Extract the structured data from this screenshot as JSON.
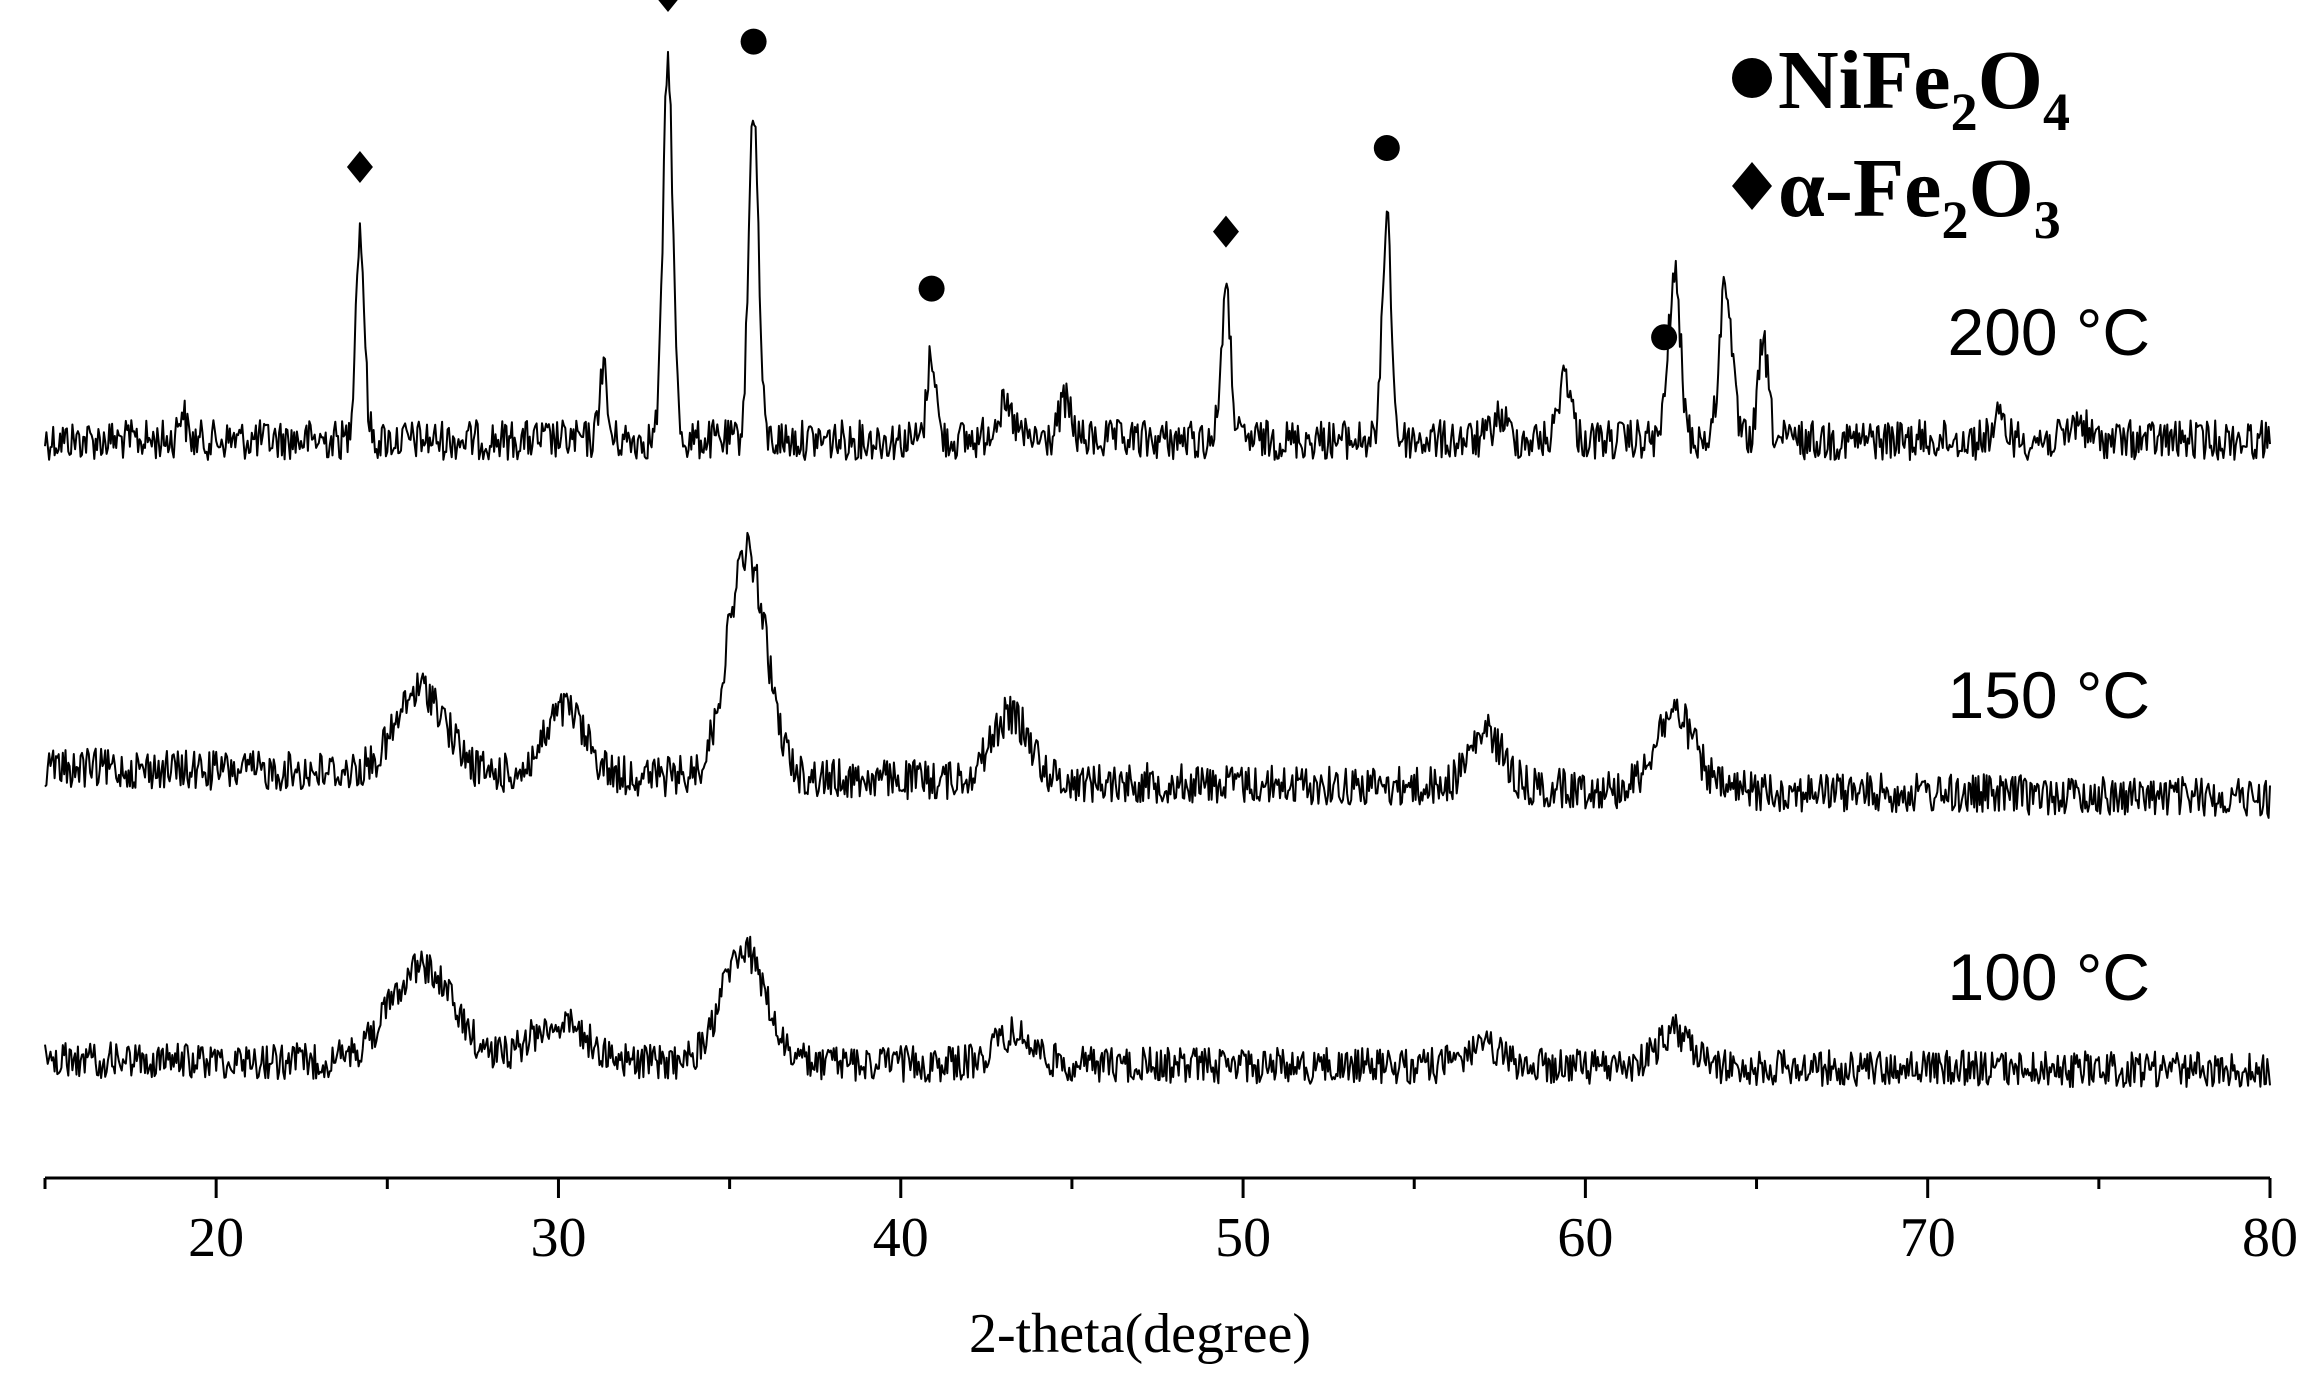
{
  "chart_data": {
    "type": "line",
    "xlabel": "2-theta(degree)",
    "ylabel": "",
    "xlim": [
      15,
      80
    ],
    "x_ticks": [
      20,
      30,
      40,
      50,
      60,
      70,
      80
    ],
    "grid": false,
    "legend_position": "top-right",
    "legend": [
      {
        "marker": "circle",
        "label": "NiFe2O4",
        "parts": [
          "NiFe",
          "2",
          "O",
          "4"
        ]
      },
      {
        "marker": "diamond",
        "label": "α-Fe2O3",
        "parts": [
          "α-Fe",
          "2",
          "O",
          "3"
        ]
      }
    ],
    "series": [
      {
        "name": "200 °C",
        "baseline": 0.0,
        "peaks": [
          [
            19.0,
            0.08,
            0.15
          ],
          [
            24.2,
            0.55,
            0.18
          ],
          [
            31.3,
            0.2,
            0.15
          ],
          [
            33.2,
            1.0,
            0.2
          ],
          [
            35.7,
            0.88,
            0.2
          ],
          [
            40.9,
            0.23,
            0.18
          ],
          [
            43.0,
            0.08,
            0.4
          ],
          [
            44.8,
            0.1,
            0.25
          ],
          [
            49.5,
            0.38,
            0.2
          ],
          [
            54.2,
            0.6,
            0.18
          ],
          [
            57.5,
            0.06,
            0.3
          ],
          [
            59.4,
            0.18,
            0.25
          ],
          [
            62.6,
            0.43,
            0.25
          ],
          [
            64.1,
            0.42,
            0.25
          ],
          [
            65.2,
            0.25,
            0.2
          ],
          [
            72.1,
            0.05,
            0.3
          ],
          [
            74.4,
            0.05,
            0.3
          ]
        ]
      },
      {
        "name": "150 °C",
        "baseline": 0.0,
        "peaks": [
          [
            26.0,
            0.28,
            1.0
          ],
          [
            30.2,
            0.22,
            0.8
          ],
          [
            35.5,
            0.75,
            0.8
          ],
          [
            43.2,
            0.22,
            0.8
          ],
          [
            57.1,
            0.18,
            0.7
          ],
          [
            62.6,
            0.26,
            0.8
          ]
        ]
      },
      {
        "name": "100 °C",
        "baseline": 0.0,
        "peaks": [
          [
            26.0,
            0.32,
            1.3
          ],
          [
            30.0,
            0.13,
            1.2
          ],
          [
            35.4,
            0.38,
            0.9
          ],
          [
            43.3,
            0.1,
            0.8
          ],
          [
            57.0,
            0.06,
            0.8
          ],
          [
            62.6,
            0.12,
            0.7
          ]
        ]
      }
    ],
    "annotations": [
      {
        "marker": "diamond",
        "phase": "α-Fe2O3",
        "x": 24.2,
        "series": "200 °C"
      },
      {
        "marker": "diamond",
        "phase": "α-Fe2O3",
        "x": 33.2,
        "series": "200 °C"
      },
      {
        "marker": "circle",
        "phase": "NiFe2O4",
        "x": 35.7,
        "series": "200 °C"
      },
      {
        "marker": "circle",
        "phase": "NiFe2O4",
        "x": 40.9,
        "series": "200 °C"
      },
      {
        "marker": "diamond",
        "phase": "α-Fe2O3",
        "x": 49.5,
        "series": "200 °C"
      },
      {
        "marker": "circle",
        "phase": "NiFe2O4",
        "x": 54.2,
        "series": "200 °C"
      },
      {
        "marker": "circle",
        "phase": "NiFe2O4",
        "x": 62.3,
        "series": "200 °C"
      }
    ]
  }
}
